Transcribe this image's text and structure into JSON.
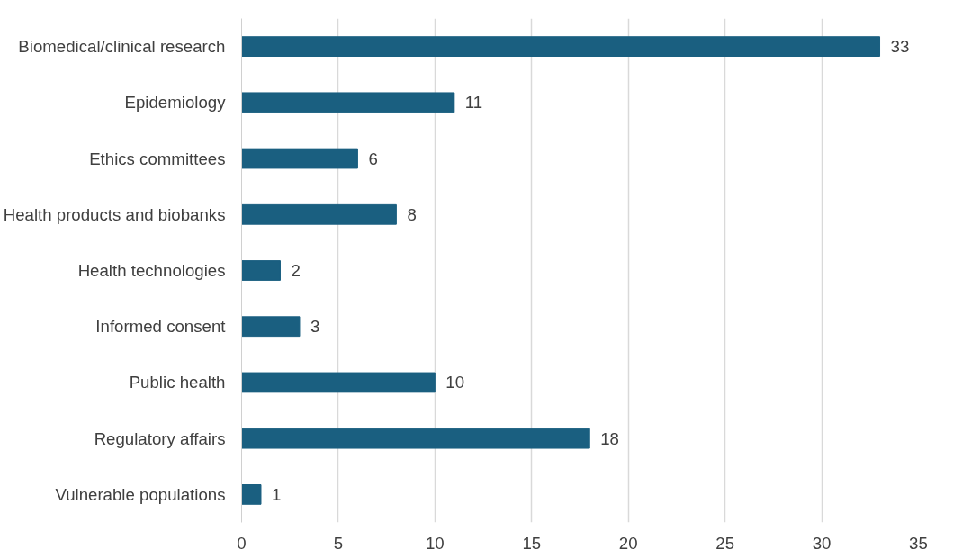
{
  "chart_data": {
    "type": "bar",
    "orientation": "horizontal",
    "categories": [
      "Biomedical/clinical research",
      "Epidemiology",
      "Ethics committees",
      "Health products and biobanks",
      "Health technologies",
      "Informed consent",
      "Public health",
      "Regulatory affairs",
      "Vulnerable populations"
    ],
    "values": [
      33,
      11,
      6,
      8,
      2,
      3,
      10,
      18,
      1
    ],
    "color": "#1a5f80",
    "xlim": [
      0,
      35
    ],
    "xticks": [
      0,
      5,
      10,
      15,
      20,
      25,
      30,
      35
    ],
    "grid": "x",
    "data_labels": true
  }
}
